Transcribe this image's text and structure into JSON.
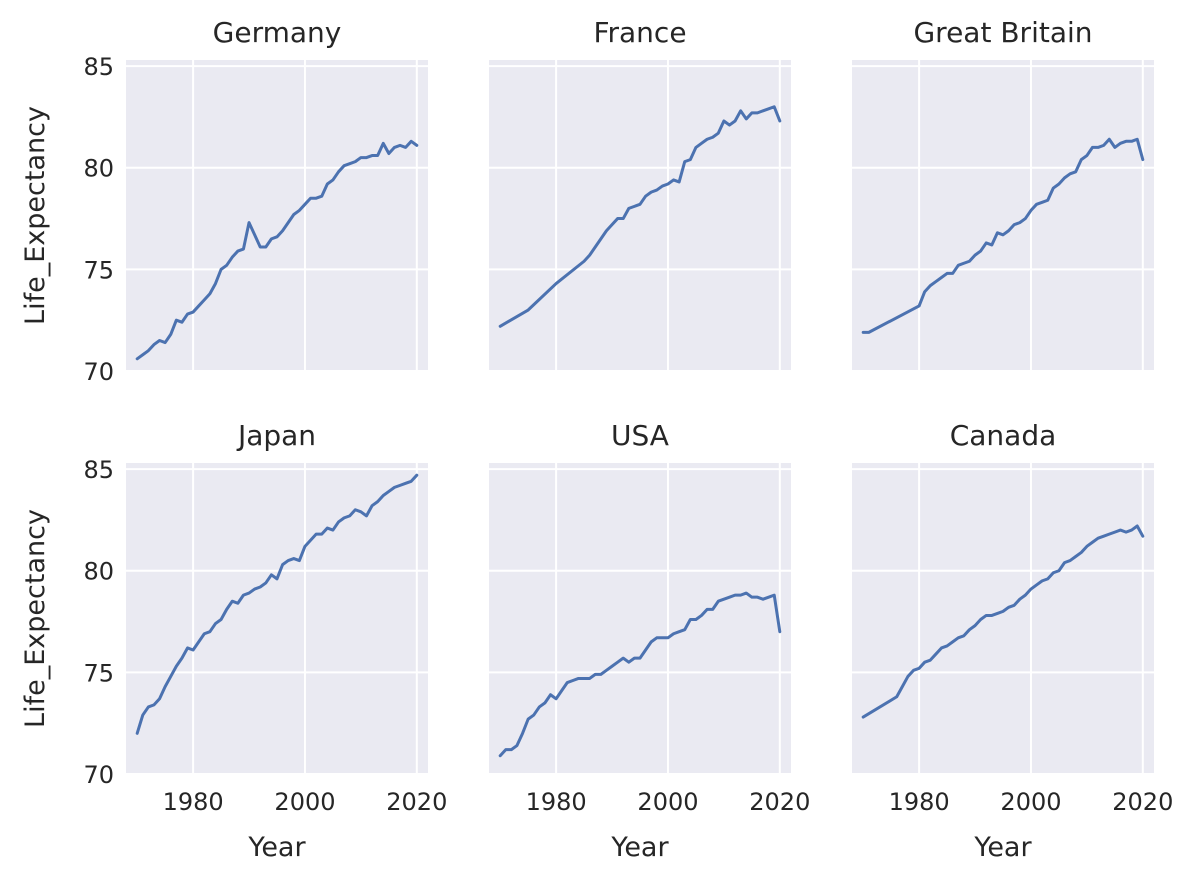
{
  "chart_data": {
    "type": "line",
    "layout": "facet-grid",
    "xlabel": "Year",
    "ylabel": "Life_Expectancy",
    "xlim": [
      1968,
      2022
    ],
    "ylim": [
      70,
      85.3
    ],
    "xticks": [
      1980,
      2000,
      2020
    ],
    "yticks": [
      70,
      75,
      80,
      85
    ],
    "grid": true,
    "series_color": "#4c72b0",
    "background_color": "#eaeaf2",
    "panels": [
      {
        "title": "Germany",
        "x": [
          1970,
          1971,
          1972,
          1973,
          1974,
          1975,
          1976,
          1977,
          1978,
          1979,
          1980,
          1981,
          1982,
          1983,
          1984,
          1985,
          1986,
          1987,
          1988,
          1989,
          1990,
          1991,
          1992,
          1993,
          1994,
          1995,
          1996,
          1997,
          1998,
          1999,
          2000,
          2001,
          2002,
          2003,
          2004,
          2005,
          2006,
          2007,
          2008,
          2009,
          2010,
          2011,
          2012,
          2013,
          2014,
          2015,
          2016,
          2017,
          2018,
          2019,
          2020
        ],
        "y": [
          70.6,
          70.8,
          71.0,
          71.3,
          71.5,
          71.4,
          71.8,
          72.5,
          72.4,
          72.8,
          72.9,
          73.2,
          73.5,
          73.8,
          74.3,
          75.0,
          75.2,
          75.6,
          75.9,
          76.0,
          77.3,
          76.7,
          76.1,
          76.1,
          76.5,
          76.6,
          76.9,
          77.3,
          77.7,
          77.9,
          78.2,
          78.5,
          78.5,
          78.6,
          79.2,
          79.4,
          79.8,
          80.1,
          80.2,
          80.3,
          80.5,
          80.5,
          80.6,
          80.6,
          81.2,
          80.7,
          81.0,
          81.1,
          81.0,
          81.3,
          81.1
        ]
      },
      {
        "title": "France",
        "x": [
          1970,
          1975,
          1980,
          1985,
          1986,
          1987,
          1988,
          1989,
          1990,
          1991,
          1992,
          1993,
          1994,
          1995,
          1996,
          1997,
          1998,
          1999,
          2000,
          2001,
          2002,
          2003,
          2004,
          2005,
          2006,
          2007,
          2008,
          2009,
          2010,
          2011,
          2012,
          2013,
          2014,
          2015,
          2016,
          2017,
          2018,
          2019,
          2020
        ],
        "y": [
          72.2,
          73.0,
          74.3,
          75.4,
          75.7,
          76.1,
          76.5,
          76.9,
          77.2,
          77.5,
          77.5,
          78.0,
          78.1,
          78.2,
          78.6,
          78.8,
          78.9,
          79.1,
          79.2,
          79.4,
          79.3,
          80.3,
          80.4,
          81.0,
          81.2,
          81.4,
          81.5,
          81.7,
          82.3,
          82.1,
          82.3,
          82.8,
          82.4,
          82.7,
          82.7,
          82.8,
          82.9,
          83.0,
          82.3
        ]
      },
      {
        "title": "Great Britain",
        "x": [
          1970,
          1971,
          1980,
          1981,
          1982,
          1983,
          1984,
          1985,
          1986,
          1987,
          1988,
          1989,
          1990,
          1991,
          1992,
          1993,
          1994,
          1995,
          1996,
          1997,
          1998,
          1999,
          2000,
          2001,
          2002,
          2003,
          2004,
          2005,
          2006,
          2007,
          2008,
          2009,
          2010,
          2011,
          2012,
          2013,
          2014,
          2015,
          2016,
          2017,
          2018,
          2019,
          2020
        ],
        "y": [
          71.9,
          71.9,
          73.2,
          73.9,
          74.2,
          74.4,
          74.6,
          74.8,
          74.8,
          75.2,
          75.3,
          75.4,
          75.7,
          75.9,
          76.3,
          76.2,
          76.8,
          76.7,
          76.9,
          77.2,
          77.3,
          77.5,
          77.9,
          78.2,
          78.3,
          78.4,
          79.0,
          79.2,
          79.5,
          79.7,
          79.8,
          80.4,
          80.6,
          81.0,
          81.0,
          81.1,
          81.4,
          81.0,
          81.2,
          81.3,
          81.3,
          81.4,
          80.4
        ]
      },
      {
        "title": "Japan",
        "x": [
          1970,
          1971,
          1972,
          1973,
          1974,
          1975,
          1976,
          1977,
          1978,
          1979,
          1980,
          1981,
          1982,
          1983,
          1984,
          1985,
          1986,
          1987,
          1988,
          1989,
          1990,
          1991,
          1992,
          1993,
          1994,
          1995,
          1996,
          1997,
          1998,
          1999,
          2000,
          2001,
          2002,
          2003,
          2004,
          2005,
          2006,
          2007,
          2008,
          2009,
          2010,
          2011,
          2012,
          2013,
          2014,
          2015,
          2016,
          2017,
          2018,
          2019,
          2020
        ],
        "y": [
          72.0,
          72.9,
          73.3,
          73.4,
          73.7,
          74.3,
          74.8,
          75.3,
          75.7,
          76.2,
          76.1,
          76.5,
          76.9,
          77.0,
          77.4,
          77.6,
          78.1,
          78.5,
          78.4,
          78.8,
          78.9,
          79.1,
          79.2,
          79.4,
          79.8,
          79.6,
          80.3,
          80.5,
          80.6,
          80.5,
          81.2,
          81.5,
          81.8,
          81.8,
          82.1,
          82.0,
          82.4,
          82.6,
          82.7,
          83.0,
          82.9,
          82.7,
          83.2,
          83.4,
          83.7,
          83.9,
          84.1,
          84.2,
          84.3,
          84.4,
          84.7
        ]
      },
      {
        "title": "USA",
        "x": [
          1970,
          1971,
          1972,
          1973,
          1974,
          1975,
          1976,
          1977,
          1978,
          1979,
          1980,
          1981,
          1982,
          1983,
          1984,
          1985,
          1986,
          1987,
          1988,
          1989,
          1990,
          1991,
          1992,
          1993,
          1994,
          1995,
          1996,
          1997,
          1998,
          1999,
          2000,
          2001,
          2002,
          2003,
          2004,
          2005,
          2006,
          2007,
          2008,
          2009,
          2010,
          2011,
          2012,
          2013,
          2014,
          2015,
          2016,
          2017,
          2018,
          2019,
          2020
        ],
        "y": [
          70.9,
          71.2,
          71.2,
          71.4,
          72.0,
          72.7,
          72.9,
          73.3,
          73.5,
          73.9,
          73.7,
          74.1,
          74.5,
          74.6,
          74.7,
          74.7,
          74.7,
          74.9,
          74.9,
          75.1,
          75.3,
          75.5,
          75.7,
          75.5,
          75.7,
          75.7,
          76.1,
          76.5,
          76.7,
          76.7,
          76.7,
          76.9,
          77.0,
          77.1,
          77.6,
          77.6,
          77.8,
          78.1,
          78.1,
          78.5,
          78.6,
          78.7,
          78.8,
          78.8,
          78.9,
          78.7,
          78.7,
          78.6,
          78.7,
          78.8,
          77.0
        ]
      },
      {
        "title": "Canada",
        "x": [
          1970,
          1976,
          1977,
          1978,
          1979,
          1980,
          1981,
          1982,
          1983,
          1984,
          1985,
          1986,
          1987,
          1988,
          1989,
          1990,
          1991,
          1992,
          1993,
          1994,
          1995,
          1996,
          1997,
          1998,
          1999,
          2000,
          2001,
          2002,
          2003,
          2004,
          2005,
          2006,
          2007,
          2008,
          2009,
          2010,
          2011,
          2012,
          2013,
          2014,
          2015,
          2016,
          2017,
          2018,
          2019,
          2020
        ],
        "y": [
          72.8,
          73.8,
          74.3,
          74.8,
          75.1,
          75.2,
          75.5,
          75.6,
          75.9,
          76.2,
          76.3,
          76.5,
          76.7,
          76.8,
          77.1,
          77.3,
          77.6,
          77.8,
          77.8,
          77.9,
          78.0,
          78.2,
          78.3,
          78.6,
          78.8,
          79.1,
          79.3,
          79.5,
          79.6,
          79.9,
          80.0,
          80.4,
          80.5,
          80.7,
          80.9,
          81.2,
          81.4,
          81.6,
          81.7,
          81.8,
          81.9,
          82.0,
          81.9,
          82.0,
          82.2,
          81.7
        ]
      }
    ]
  }
}
